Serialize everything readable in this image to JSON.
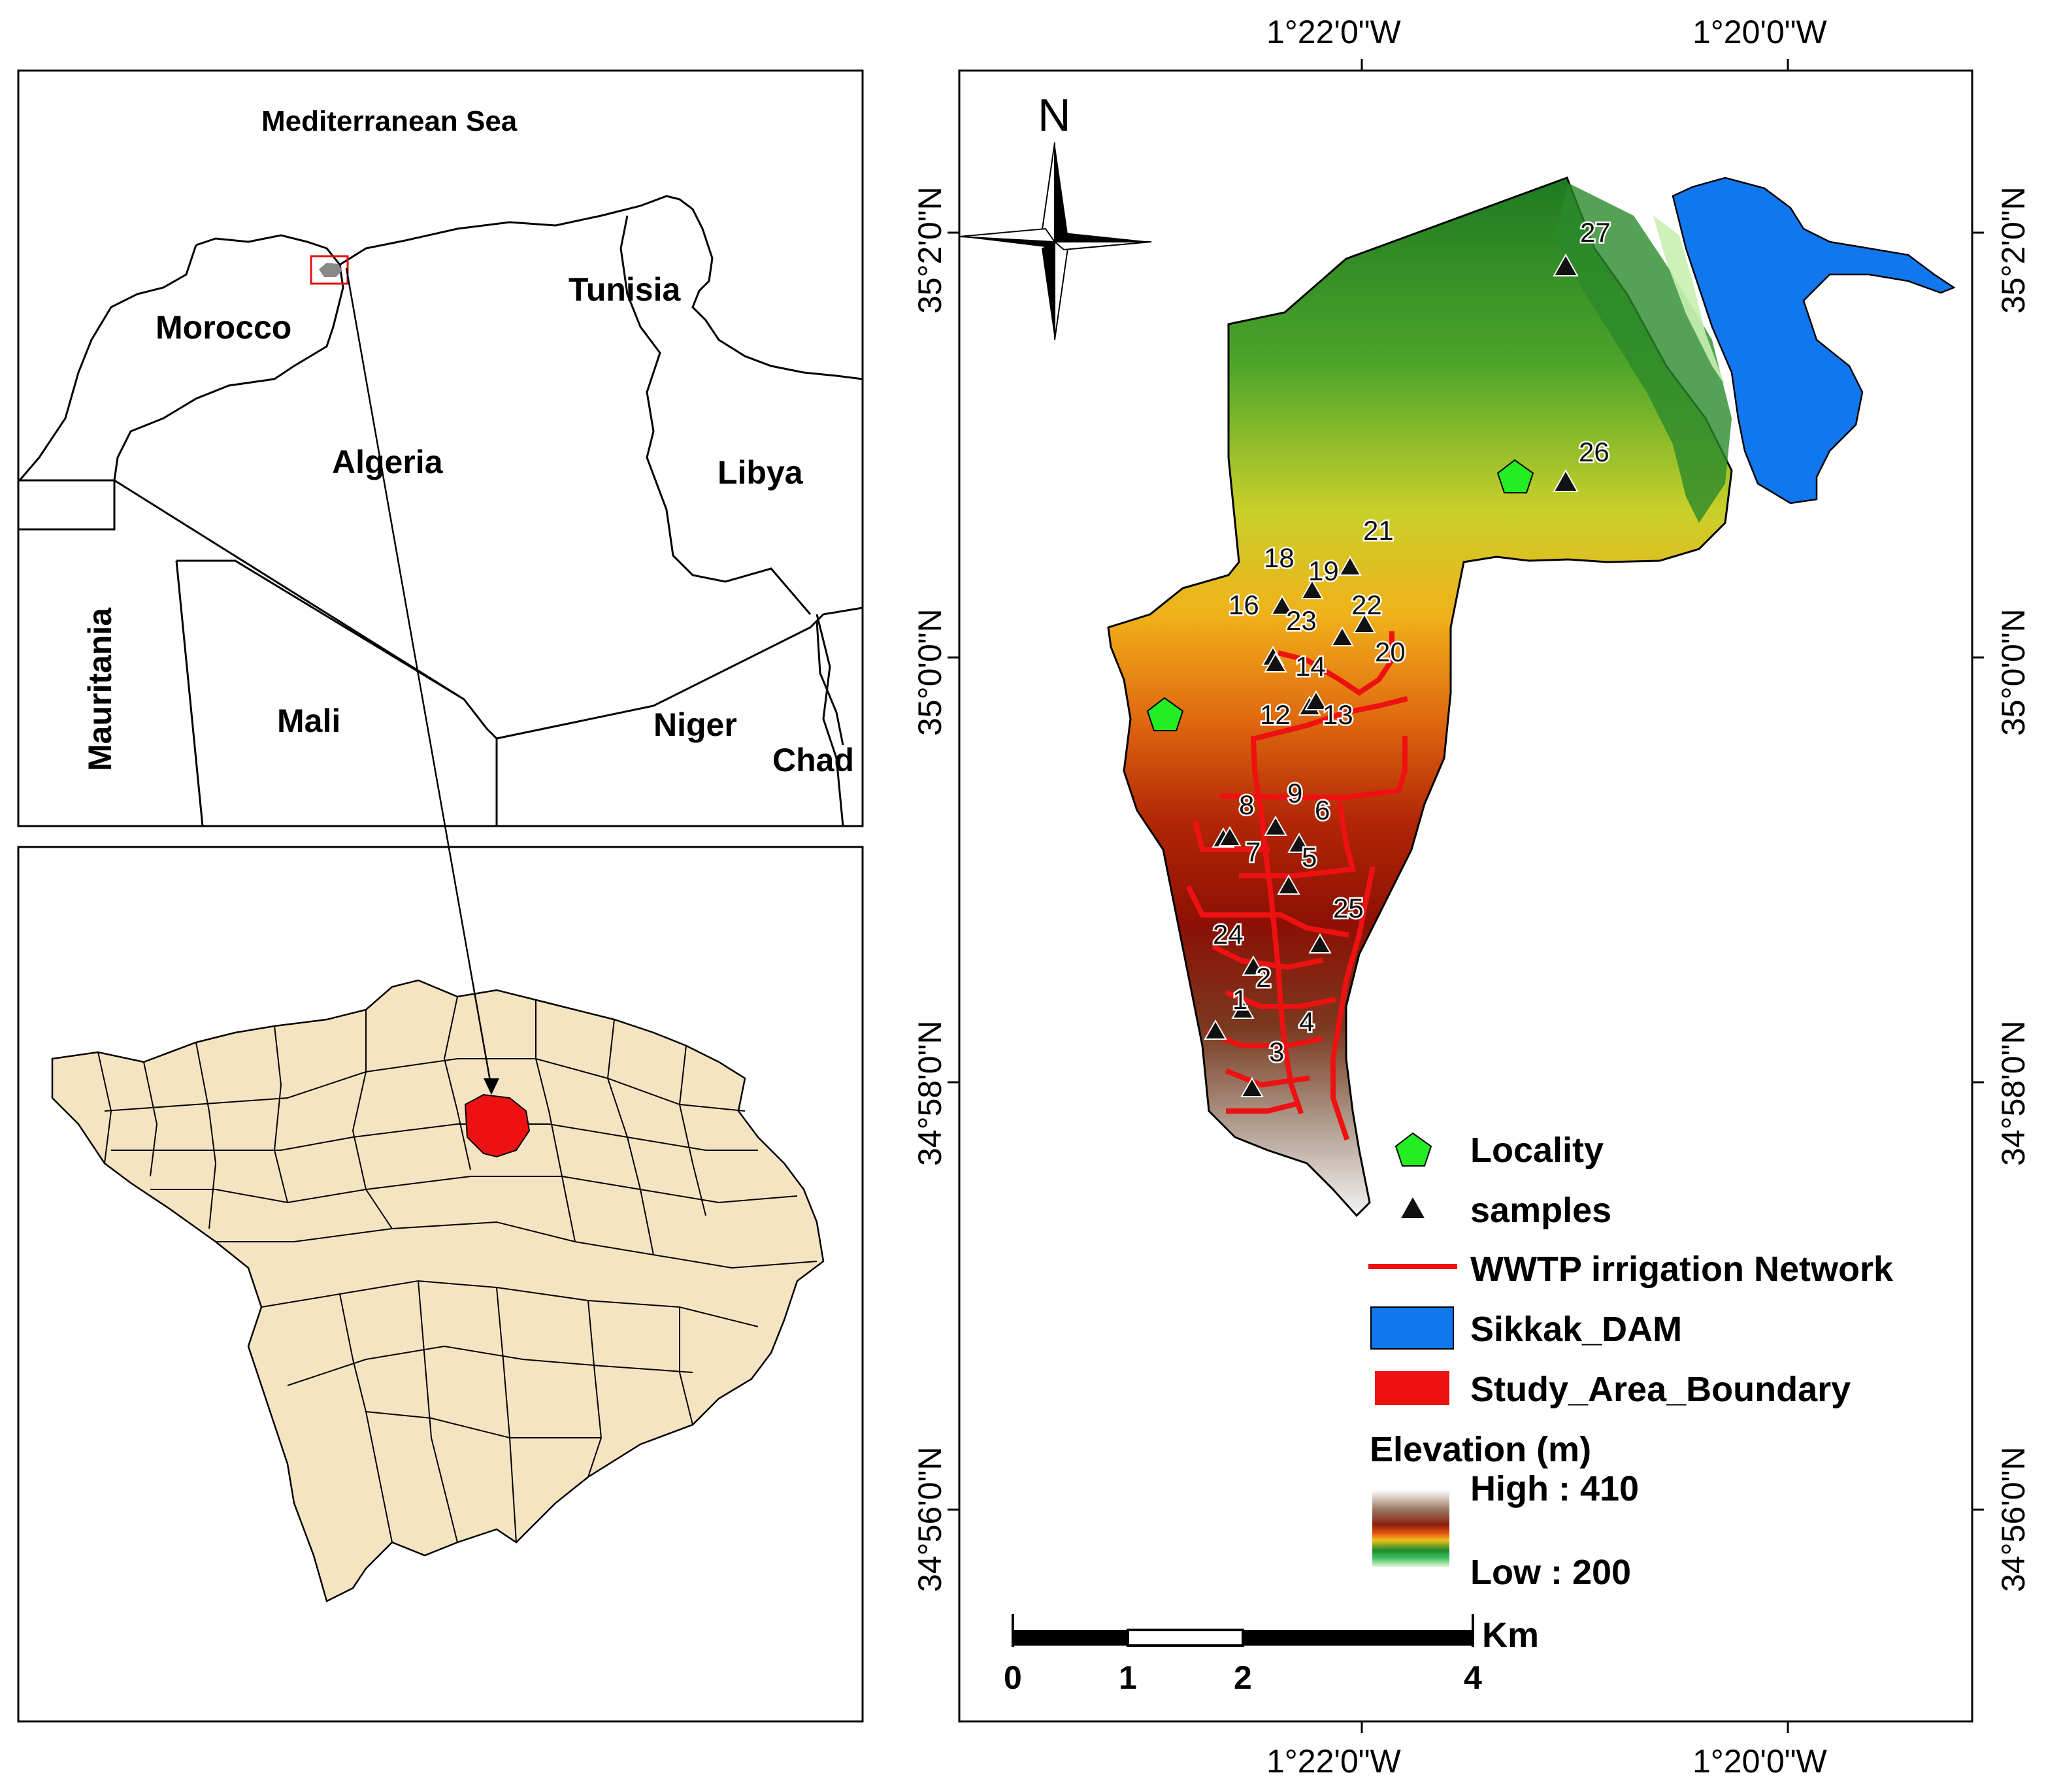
{
  "overview_map": {
    "title": "Mediterranean Sea",
    "countries": [
      "Morocco",
      "Algeria",
      "Tunisia",
      "Libya",
      "Mauritania",
      "Mali",
      "Niger",
      "Chad"
    ]
  },
  "study_map": {
    "north_arrow": "N",
    "coords_top": [
      "1°22'0\"W",
      "1°20'0\"W"
    ],
    "coords_bottom": [
      "1°22'0\"W",
      "1°20'0\"W"
    ],
    "coords_left": [
      "35°2'0\"N",
      "35°0'0\"N",
      "34°58'0\"N",
      "34°56'0\"N"
    ],
    "coords_right": [
      "35°2'0\"N",
      "35°0'0\"N",
      "34°58'0\"N",
      "34°56'0\"N"
    ],
    "sample_labels": [
      "1",
      "2",
      "3",
      "4",
      "5",
      "6",
      "7",
      "8",
      "9",
      "12",
      "13",
      "14",
      "16",
      "18",
      "19",
      "20",
      "21",
      "22",
      "23",
      "24",
      "25",
      "26",
      "27"
    ],
    "scale_bar": {
      "unit": "Km",
      "ticks": [
        "0",
        "1",
        "2",
        "4"
      ]
    }
  },
  "legend": {
    "items": [
      {
        "label": "Locality",
        "color": "#22ee22"
      },
      {
        "label": "samples",
        "color": "#111111"
      },
      {
        "label": "WWTP irrigation Network",
        "color": "#ee1111"
      },
      {
        "label": "Sikkak_DAM",
        "color": "#1177ee"
      },
      {
        "label": "Study_Area_Boundary",
        "color": "#ee1111"
      }
    ],
    "elevation_title": "Elevation (m)",
    "elevation_high": "High : 410",
    "elevation_low": "Low : 200"
  }
}
